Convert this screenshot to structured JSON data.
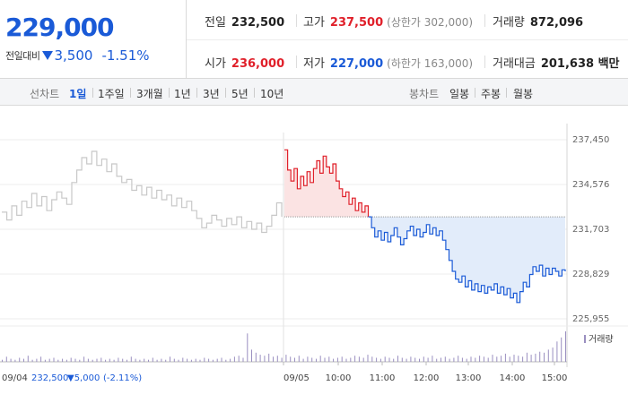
{
  "summary": {
    "price": "229,000",
    "change_label": "전일대비",
    "change_value": "3,500",
    "change_pct": "-1.51%"
  },
  "stats": {
    "prev_close": {
      "label": "전일",
      "value": "232,500"
    },
    "high": {
      "label": "고가",
      "value": "237,500",
      "sub": "(상한가 302,000)"
    },
    "volume": {
      "label": "거래량",
      "value": "872,096"
    },
    "open": {
      "label": "시가",
      "value": "236,000"
    },
    "low": {
      "label": "저가",
      "value": "227,000",
      "sub": "(하한가 163,000)"
    },
    "amount": {
      "label": "거래대금",
      "value": "201,638 백만"
    }
  },
  "line_chart_group": {
    "label": "선차트",
    "options": [
      {
        "label": "1일",
        "active": true
      },
      {
        "label": "1주일",
        "active": false
      },
      {
        "label": "3개월",
        "active": false
      },
      {
        "label": "1년",
        "active": false
      },
      {
        "label": "3년",
        "active": false
      },
      {
        "label": "5년",
        "active": false
      },
      {
        "label": "10년",
        "active": false
      }
    ]
  },
  "candle_chart_group": {
    "label": "봉차트",
    "options": [
      {
        "label": "일봉"
      },
      {
        "label": "주봉"
      },
      {
        "label": "월봉"
      }
    ]
  },
  "colors": {
    "up": "#e0202a",
    "down": "#1a5ad7",
    "prev_day_line": "#c8c8c8",
    "up_fill": "#fbe3e3",
    "down_fill": "#e2ecfa",
    "volume": "#9a8fc0"
  },
  "chart_data": {
    "type": "line",
    "y_ticks": [
      "237,450",
      "234,576",
      "231,703",
      "228,829",
      "225,955"
    ],
    "y_tick_values": [
      237450,
      234576,
      231703,
      228829,
      225955
    ],
    "ylim": [
      225955,
      237450
    ],
    "base_price": 232500,
    "x_tick_labels": [
      "09/04",
      "09/05",
      "10:00",
      "11:00",
      "12:00",
      "13:00",
      "14:00",
      "15:00"
    ],
    "volume_label": "거래량",
    "prev_day_info": {
      "date": "09/04",
      "price": "232,500",
      "change": "▼5,000",
      "pct": "(-2.11%)"
    },
    "series": [
      {
        "day": "09/04",
        "values": [
          232800,
          232300,
          233200,
          232600,
          233500,
          233100,
          234000,
          233200,
          233800,
          232900,
          233600,
          234100,
          233700,
          233300,
          234700,
          235500,
          236300,
          235900,
          236700,
          235800,
          236200,
          235400,
          235900,
          235100,
          234700,
          234900,
          234200,
          234500,
          233900,
          234400,
          233700,
          234200,
          233600,
          233900,
          233200,
          233700,
          233100,
          233500,
          232900,
          232400,
          231800,
          232100,
          232600,
          232300,
          231900,
          232400,
          232000,
          232500,
          231800,
          232200,
          231700,
          232100,
          231500,
          231900,
          232600,
          233400,
          232500
        ]
      },
      {
        "day": "09/05",
        "values": [
          236800,
          235500,
          234800,
          235600,
          234300,
          235100,
          234500,
          235400,
          234700,
          235600,
          236100,
          235300,
          236400,
          235700,
          235300,
          235900,
          234800,
          234300,
          233800,
          234100,
          233300,
          233700,
          232900,
          233400,
          232800,
          233200,
          232500,
          231800,
          231200,
          231600,
          231000,
          231500,
          230900,
          231300,
          231800,
          231200,
          230700,
          231100,
          231600,
          231900,
          231300,
          231700,
          231200,
          231500,
          232000,
          231400,
          231800,
          231300,
          231600,
          231000,
          230400,
          229700,
          229000,
          228500,
          228300,
          228700,
          228000,
          228400,
          227800,
          228200,
          227700,
          228100,
          227600,
          228000,
          227800,
          228200,
          227600,
          228000,
          227500,
          227900,
          227300,
          227600,
          227000,
          227700,
          228300,
          228000,
          228800,
          229300,
          229000,
          229400,
          228700,
          229200,
          228800,
          229200,
          229000,
          228700,
          229100,
          229000
        ]
      }
    ],
    "volume": [
      2,
      5,
      3,
      2,
      4,
      3,
      6,
      2,
      3,
      5,
      2,
      3,
      4,
      2,
      3,
      2,
      4,
      3,
      2,
      5,
      3,
      2,
      3,
      4,
      2,
      3,
      2,
      4,
      3,
      2,
      5,
      3,
      2,
      3,
      2,
      4,
      2,
      3,
      2,
      5,
      3,
      2,
      4,
      3,
      2,
      3,
      2,
      4,
      3,
      2,
      3,
      4,
      2,
      3,
      5,
      6,
      4,
      28,
      12,
      9,
      7,
      6,
      8,
      5,
      6,
      4,
      7,
      5,
      4,
      6,
      3,
      5,
      4,
      3,
      6,
      4,
      5,
      3,
      4,
      5,
      3,
      4,
      6,
      5,
      4,
      7,
      5,
      4,
      3,
      5,
      4,
      3,
      6,
      4,
      3,
      5,
      4,
      3,
      5,
      4,
      6,
      3,
      4,
      5,
      3,
      4,
      6,
      4,
      3,
      5,
      4,
      6,
      5,
      4,
      7,
      5,
      6,
      8,
      5,
      7,
      6,
      5,
      9,
      7,
      8,
      10,
      9,
      12,
      14,
      20,
      24,
      30
    ]
  }
}
